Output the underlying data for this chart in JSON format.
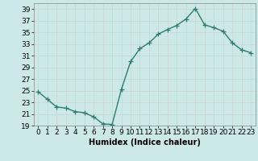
{
  "x": [
    0,
    1,
    2,
    3,
    4,
    5,
    6,
    7,
    8,
    9,
    10,
    11,
    12,
    13,
    14,
    15,
    16,
    17,
    18,
    19,
    20,
    21,
    22,
    23
  ],
  "y": [
    24.8,
    23.5,
    22.2,
    22.0,
    21.4,
    21.2,
    20.5,
    19.3,
    19.2,
    25.2,
    30.0,
    32.2,
    33.2,
    34.7,
    35.5,
    36.2,
    37.3,
    39.1,
    36.3,
    35.8,
    35.2,
    33.2,
    32.0,
    31.5
  ],
  "line_color": "#2e7d6e",
  "marker": "+",
  "marker_size": 4,
  "bg_color": "#cce8e8",
  "grid_color": "#b8d8d8",
  "xlabel": "Humidex (Indice chaleur)",
  "xlim": [
    -0.5,
    23.5
  ],
  "ylim": [
    19,
    40
  ],
  "yticks": [
    19,
    21,
    23,
    25,
    27,
    29,
    31,
    33,
    35,
    37,
    39
  ],
  "xticks": [
    0,
    1,
    2,
    3,
    4,
    5,
    6,
    7,
    8,
    9,
    10,
    11,
    12,
    13,
    14,
    15,
    16,
    17,
    18,
    19,
    20,
    21,
    22,
    23
  ],
  "xtick_labels": [
    "0",
    "1",
    "2",
    "3",
    "4",
    "5",
    "6",
    "7",
    "8",
    "9",
    "10",
    "11",
    "12",
    "13",
    "14",
    "15",
    "16",
    "17",
    "18",
    "19",
    "20",
    "21",
    "22",
    "23"
  ],
  "xlabel_fontsize": 7,
  "tick_fontsize": 6.5,
  "line_width": 1.0
}
